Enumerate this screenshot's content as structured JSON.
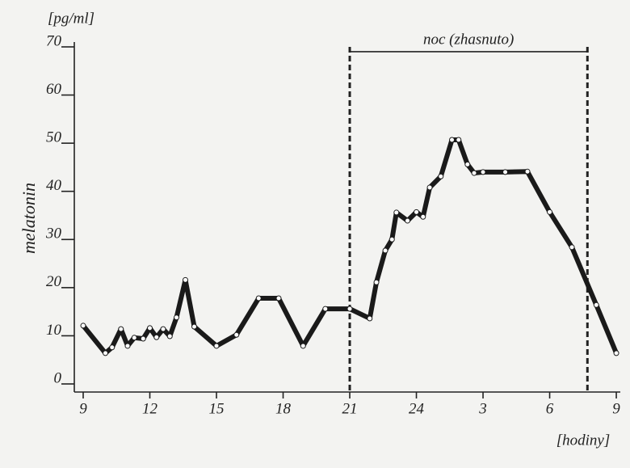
{
  "chart_data": {
    "type": "line",
    "y_unit": "[pg/ml]",
    "ylabel": "melatonin",
    "x_unit": "[hodiny]",
    "x": [
      9.0,
      10.0,
      10.3,
      10.7,
      11.0,
      11.3,
      11.7,
      12.0,
      12.3,
      12.6,
      12.9,
      13.2,
      13.6,
      14.0,
      15.0,
      15.9,
      16.9,
      17.8,
      18.9,
      19.9,
      21.0,
      21.9,
      22.2,
      22.6,
      22.9,
      23.1,
      23.6,
      24.0,
      24.3,
      24.6,
      25.1,
      25.6,
      25.9,
      26.3,
      26.6,
      27.0,
      28.0,
      29.0,
      30.0,
      31.0,
      32.1,
      33.0
    ],
    "series": [
      {
        "name": "melatonin",
        "color": "#1a1a1a",
        "values": [
          12.1,
          6.4,
          7.6,
          11.4,
          7.9,
          9.6,
          9.4,
          11.6,
          9.7,
          11.4,
          9.9,
          13.8,
          21.6,
          11.9,
          7.9,
          10.2,
          17.8,
          17.8,
          7.9,
          15.6,
          15.6,
          13.6,
          21.1,
          27.7,
          30.0,
          35.6,
          33.9,
          35.7,
          34.7,
          40.8,
          43.1,
          50.7,
          50.7,
          45.6,
          43.8,
          44.0,
          44.0,
          44.1,
          35.7,
          28.4,
          16.4,
          6.4
        ]
      }
    ],
    "xlim": [
      8.6,
      33.18
    ],
    "xticks": [
      9,
      12,
      15,
      18,
      21,
      24,
      {
        "value": 27,
        "label": "3"
      },
      {
        "value": 30,
        "label": "6"
      },
      {
        "value": 33,
        "label": "9"
      }
    ],
    "ylim": [
      0,
      70
    ],
    "yticks": [
      0,
      10,
      20,
      30,
      40,
      50,
      60,
      70
    ],
    "night": {
      "label": "noc (zhasnuto)",
      "start": 21,
      "end": 31.7,
      "level": 69
    }
  }
}
